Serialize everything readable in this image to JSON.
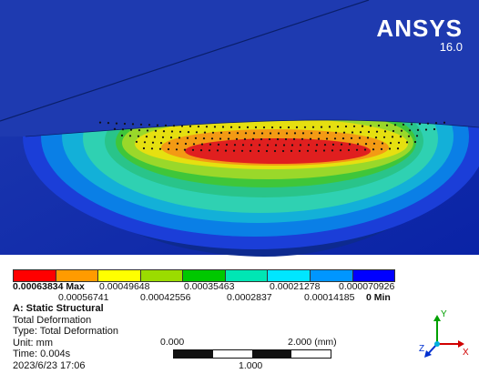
{
  "brand": {
    "name": "ANSYS",
    "version": "16.0"
  },
  "legend": {
    "colors": [
      "#ff0000",
      "#ff9b00",
      "#ffff00",
      "#9bdc00",
      "#00c800",
      "#00e6b4",
      "#00e6ff",
      "#0096ff",
      "#0000ff"
    ],
    "max_label": "0.00063834 Max",
    "min_label": "0 Min",
    "top_values": [
      "0.00049648",
      "0.00035463",
      "0.00021278",
      "0.000070926"
    ],
    "bottom_values": [
      "0.00056741",
      "0.00042556",
      "0.0002837",
      "0.00014185"
    ]
  },
  "info": {
    "title": "A: Static Structural",
    "lines": [
      "Total Deformation",
      "Type: Total Deformation",
      "Unit: mm",
      "Time: 0.004s",
      "2023/6/23 17:06"
    ]
  },
  "scale": {
    "left": "0.000",
    "right": "2.000 (mm)",
    "mid": "1.000"
  },
  "triad": {
    "x": "X",
    "y": "Y",
    "z": "Z"
  }
}
